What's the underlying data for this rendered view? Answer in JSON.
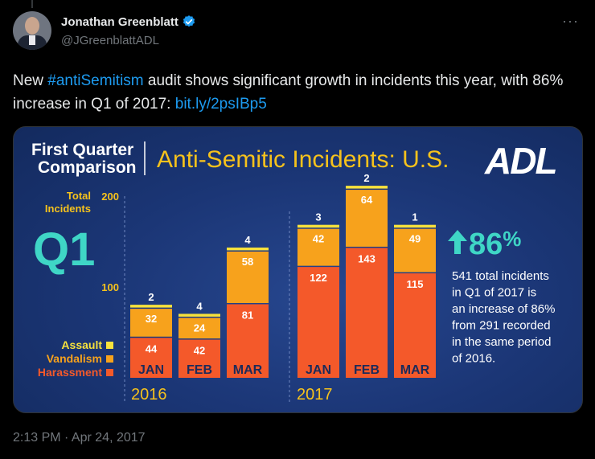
{
  "author": {
    "name": "Jonathan Greenblatt",
    "handle": "@JGreenblattADL",
    "verified": true,
    "verified_color": "#1d9bf0"
  },
  "tweet": {
    "text_before": "New ",
    "hashtag": "#antiSemitism",
    "text_middle": " audit shows significant growth in incidents this year, with 86% increase in Q1 of 2017: ",
    "link": "bit.ly/2psIBp5",
    "timestamp": "2:13 PM · Apr 24, 2017"
  },
  "infographic": {
    "heading_line1": "First Quarter",
    "heading_line2": "Comparison",
    "title": "Anti-Semitic Incidents: U.S.",
    "logo": "ADL",
    "total_label_line1": "Total",
    "total_label_line2": "Incidents",
    "q1_label": "Q1",
    "stat": "86",
    "stat_unit": "%",
    "description": [
      "541 total incidents",
      "in Q1 of 2017 is",
      "an increase of 86%",
      "from 291 recorded",
      "in the same period",
      "of 2016."
    ],
    "colors": {
      "assault": "#f7e23c",
      "vandalism": "#f7a21c",
      "harassment": "#f4592a",
      "title": "#f6c21c",
      "stat": "#3fd6c6"
    }
  },
  "chart_data": {
    "type": "bar",
    "stacked": true,
    "ylim": [
      0,
      200
    ],
    "yticks": [
      100,
      200
    ],
    "groups": [
      {
        "label": "2016",
        "categories": [
          "JAN",
          "FEB",
          "MAR"
        ]
      },
      {
        "label": "2017",
        "categories": [
          "JAN",
          "FEB",
          "MAR"
        ]
      }
    ],
    "series": [
      {
        "name": "Harassment",
        "values": [
          44,
          42,
          81,
          122,
          143,
          115
        ]
      },
      {
        "name": "Vandalism",
        "values": [
          32,
          24,
          58,
          42,
          64,
          49
        ]
      },
      {
        "name": "Assault",
        "values": [
          2,
          4,
          4,
          3,
          2,
          1
        ]
      }
    ],
    "legend": [
      "Assault",
      "Vandalism",
      "Harassment"
    ],
    "legend_position": "left"
  }
}
